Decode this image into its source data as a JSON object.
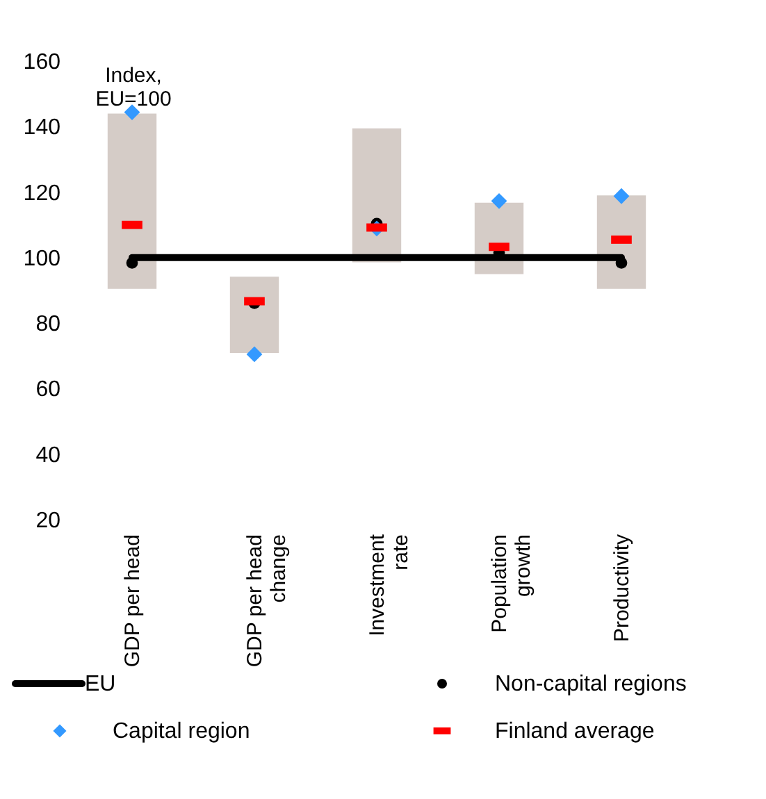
{
  "chart_data": {
    "type": "bar",
    "ylabel": "Index,\nEU=100",
    "categories": [
      "GDP per head",
      "GDP per head\nchange",
      "Investment\nrate",
      "Population\ngrowth",
      "Productivity"
    ],
    "ylim": [
      20,
      160
    ],
    "yticks": [
      20,
      40,
      60,
      80,
      100,
      120,
      140,
      160
    ],
    "grid": false,
    "legend": "bottom",
    "series": [
      {
        "color": "#d5ccc7",
        "base": [
          90.5,
          70.9,
          98.6,
          95,
          90.5
        ],
        "values": [
          53.5,
          23.3,
          40.9,
          21.8,
          28.5
        ]
      },
      {
        "type": "line",
        "name": "EU",
        "color": "#000000",
        "values": [
          100,
          100,
          100,
          100,
          100
        ]
      },
      {
        "type": "scatter",
        "name": "Non-capital regions",
        "color": "#000000",
        "marker": "circle",
        "values": [
          98.4,
          86.1,
          110.4,
          101.5,
          98.4
        ]
      },
      {
        "type": "scatter",
        "name": "Capital region",
        "color": "#3399ff",
        "marker": "diamond",
        "values": [
          144.4,
          70.5,
          108.9,
          117.3,
          118.8
        ]
      },
      {
        "type": "scatter",
        "name": "Finland average",
        "color": "#ff0000",
        "values": [
          110,
          86.7,
          109.2,
          103.3,
          105.5
        ]
      }
    ]
  }
}
